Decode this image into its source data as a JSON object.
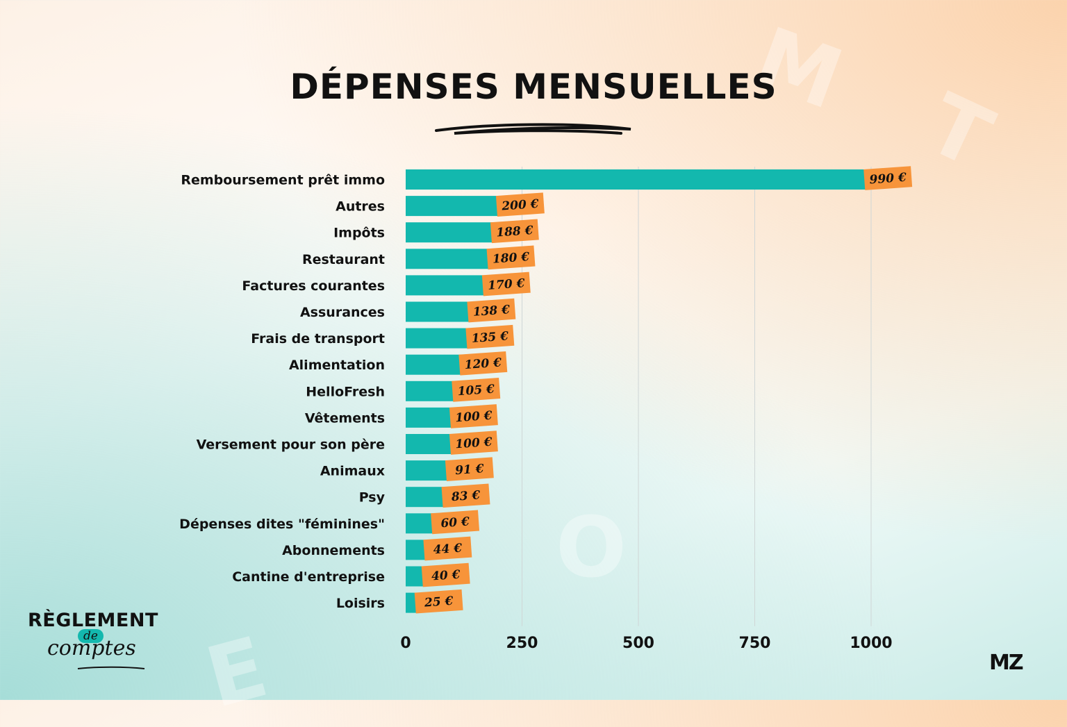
{
  "title": "DÉPENSES MENSUELLES",
  "logos": {
    "left_line1": "RÈGLEMENT",
    "left_line2": "de",
    "left_line3": "comptes",
    "right": "MZ"
  },
  "colors": {
    "bar": "#13b8ae",
    "label_tag": "#f7943a",
    "text": "#111111",
    "grid": "#cfd6d6"
  },
  "chart_data": {
    "type": "bar",
    "orientation": "horizontal",
    "title": "DÉPENSES MENSUELLES",
    "categories": [
      "Remboursement prêt immo",
      "Autres",
      "Impôts",
      "Restaurant",
      "Factures courantes",
      "Assurances",
      "Frais de transport",
      "Alimentation",
      "HelloFresh",
      "Vêtements",
      "Versement pour son père",
      "Animaux",
      "Psy",
      "Dépenses dites \"féminines\"",
      "Abonnements",
      "Cantine d'entreprise",
      "Loisirs"
    ],
    "values": [
      990,
      200,
      188,
      180,
      170,
      138,
      135,
      120,
      105,
      100,
      100,
      91,
      83,
      60,
      44,
      40,
      25
    ],
    "value_labels": [
      "990 €",
      "200 €",
      "188 €",
      "180 €",
      "170 €",
      "138 €",
      "135 €",
      "120 €",
      "105 €",
      "100 €",
      "100 €",
      "91 €",
      "83 €",
      "60 €",
      "44 €",
      "40 €",
      "25 €"
    ],
    "xticks": [
      "0",
      "250",
      "500",
      "750",
      "1000"
    ],
    "xtick_values": [
      0,
      250,
      500,
      750,
      1000
    ],
    "xlim": [
      0,
      1000
    ],
    "grid": true
  }
}
